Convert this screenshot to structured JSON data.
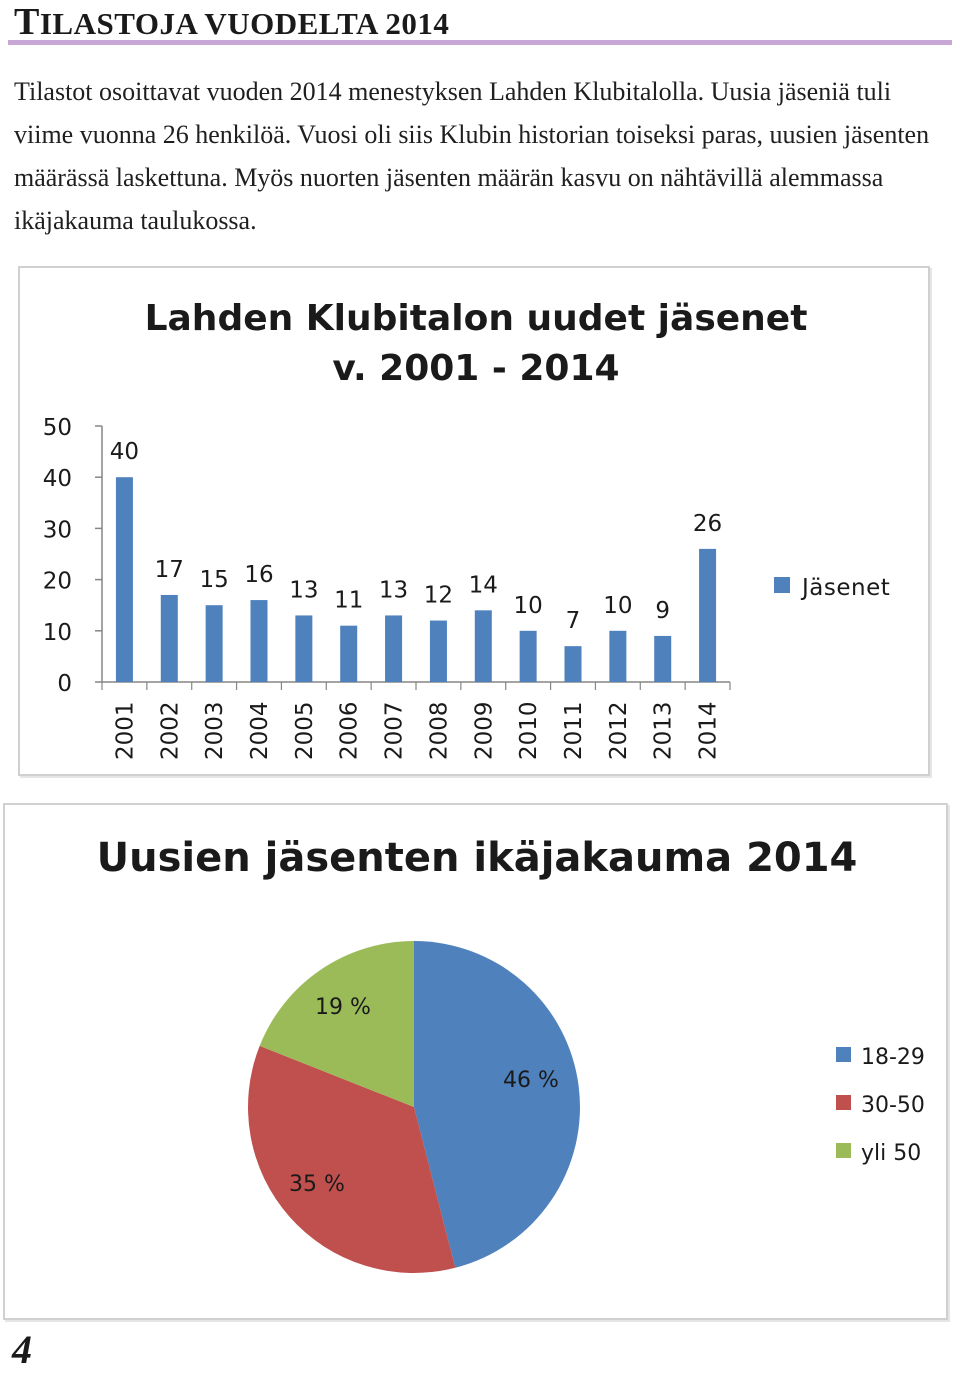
{
  "header": {
    "title_first": "T",
    "title_rest": "ILASTOJA VUODELTA 2014"
  },
  "intro_text": "Tilastot osoittavat vuoden 2014 menestyksen Lahden Klubitalolla. Uusia jäseniä tuli viime vuonna 26 henkilöä. Vuosi oli siis Klubin historian toiseksi paras, uusien jäsenten määrässä laskettuna. Myös nuorten jäsenten määrän kasvu on nähtävillä alemmassa ikäjakauma taulukossa.",
  "page_number": "4",
  "colors": {
    "bar": "#4f81bd",
    "slice_18_29": "#4f81bd",
    "slice_30_50": "#c0504d",
    "slice_yli_50": "#9bbb59",
    "rule": "#c8a6d6"
  },
  "chart_data": [
    {
      "type": "bar",
      "title_lines": [
        "Lahden Klubitalon uudet jäsenet",
        "v. 2001 - 2014"
      ],
      "categories": [
        "2001",
        "2002",
        "2003",
        "2004",
        "2005",
        "2006",
        "2007",
        "2008",
        "2009",
        "2010",
        "2011",
        "2012",
        "2013",
        "2014"
      ],
      "series": [
        {
          "name": "Jäsenet",
          "values": [
            40,
            17,
            15,
            16,
            13,
            11,
            13,
            12,
            14,
            10,
            7,
            10,
            9,
            26
          ]
        }
      ],
      "ylim": [
        0,
        50
      ],
      "yticks": [
        0,
        10,
        20,
        30,
        40,
        50
      ],
      "data_labels": true,
      "grid": false,
      "legend_position": "right"
    },
    {
      "type": "pie",
      "title": "Uusien jäsenten ikäjakauma 2014",
      "labels": [
        "18-29",
        "30-50",
        "yli 50"
      ],
      "values": [
        46,
        35,
        19
      ],
      "value_labels": [
        "46 %",
        "35 %",
        "19 %"
      ],
      "legend_position": "right"
    }
  ]
}
